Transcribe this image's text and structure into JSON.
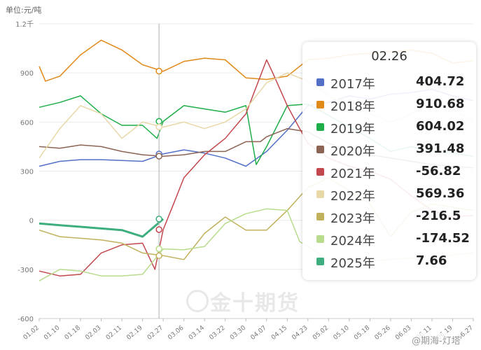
{
  "unit_label": "单位:元/吨",
  "watermark": "金十期货",
  "source_tag": "@期海-灯塔",
  "chart_data": {
    "type": "line",
    "ylim": [
      -600,
      1200
    ],
    "yticks": [
      {
        "value": 1200,
        "label": "1.2千"
      },
      {
        "value": 900,
        "label": "900"
      },
      {
        "value": 600,
        "label": "600"
      },
      {
        "value": 300,
        "label": "300"
      },
      {
        "value": 0,
        "label": "0"
      },
      {
        "value": -300,
        "label": "-300"
      },
      {
        "value": -600,
        "label": "-600"
      }
    ],
    "xticks": [
      "01.02",
      "01.10",
      "01.18",
      "02.03",
      "02.11",
      "02.19",
      "02.27",
      "03.06",
      "03.14",
      "03.22",
      "03.30",
      "04.07",
      "04.15",
      "04.23",
      "05.02",
      "05.10",
      "05.18",
      "05.26",
      "06.03",
      "06.11",
      "06.19",
      "06.27"
    ],
    "cursor_date": "02.26",
    "series": [
      {
        "name": "2017年",
        "color": "#5470c6",
        "tooltip_value": "404.72",
        "points": [
          [
            0,
            330
          ],
          [
            1,
            360
          ],
          [
            2,
            370
          ],
          [
            3,
            370
          ],
          [
            4,
            365
          ],
          [
            5,
            360
          ],
          [
            6,
            405
          ],
          [
            7,
            430
          ],
          [
            8,
            410
          ],
          [
            9,
            380
          ],
          [
            10,
            330
          ],
          [
            11,
            420
          ],
          [
            12,
            550
          ],
          [
            13,
            700
          ],
          [
            14,
            720
          ],
          [
            15,
            760
          ],
          [
            16,
            740
          ],
          [
            17,
            770
          ],
          [
            18,
            780
          ],
          [
            19,
            800
          ],
          [
            20,
            760
          ],
          [
            21,
            730
          ]
        ]
      },
      {
        "name": "2018年",
        "color": "#e08a1a",
        "tooltip_value": "910.68",
        "points": [
          [
            0,
            940
          ],
          [
            0.3,
            850
          ],
          [
            1,
            880
          ],
          [
            2,
            1010
          ],
          [
            3,
            1100
          ],
          [
            4,
            1040
          ],
          [
            5,
            950
          ],
          [
            6,
            910
          ],
          [
            7,
            970
          ],
          [
            8,
            990
          ],
          [
            9,
            980
          ],
          [
            10,
            870
          ],
          [
            11,
            860
          ],
          [
            12,
            880
          ],
          [
            13,
            980
          ],
          [
            14,
            990
          ],
          [
            15,
            1010
          ],
          [
            16,
            1020
          ],
          [
            17,
            1030
          ],
          [
            18,
            1040
          ],
          [
            19,
            1020
          ],
          [
            20,
            960
          ],
          [
            21,
            975
          ]
        ]
      },
      {
        "name": "2019年",
        "color": "#1fae4a",
        "tooltip_value": "604.02",
        "points": [
          [
            0,
            690
          ],
          [
            1,
            720
          ],
          [
            2,
            760
          ],
          [
            3,
            650
          ],
          [
            4,
            580
          ],
          [
            5,
            580
          ],
          [
            5.7,
            500
          ],
          [
            6,
            604
          ],
          [
            7,
            700
          ],
          [
            8,
            680
          ],
          [
            9,
            660
          ],
          [
            10,
            700
          ],
          [
            10.5,
            340
          ],
          [
            11,
            450
          ],
          [
            12,
            700
          ],
          [
            13,
            710
          ],
          [
            14,
            640
          ],
          [
            15,
            570
          ],
          [
            16,
            500
          ],
          [
            17,
            420
          ],
          [
            18,
            450
          ],
          [
            19,
            420
          ],
          [
            20,
            410
          ],
          [
            21,
            390
          ]
        ]
      },
      {
        "name": "2020年",
        "color": "#8c6454",
        "tooltip_value": "391.48",
        "points": [
          [
            0,
            450
          ],
          [
            1,
            440
          ],
          [
            2,
            460
          ],
          [
            3,
            450
          ],
          [
            4,
            420
          ],
          [
            5,
            400
          ],
          [
            6,
            391
          ],
          [
            7,
            400
          ],
          [
            8,
            420
          ],
          [
            9,
            420
          ],
          [
            10,
            480
          ],
          [
            10.7,
            480
          ],
          [
            11,
            510
          ],
          [
            12,
            560
          ],
          [
            13,
            540
          ],
          [
            14,
            470
          ],
          [
            15,
            420
          ],
          [
            16,
            400
          ],
          [
            17,
            380
          ],
          [
            18,
            360
          ],
          [
            19,
            340
          ],
          [
            20,
            330
          ],
          [
            21,
            320
          ]
        ]
      },
      {
        "name": "2021年",
        "color": "#c2484e",
        "tooltip_value": "-56.82",
        "points": [
          [
            0,
            -310
          ],
          [
            1,
            -340
          ],
          [
            2,
            -330
          ],
          [
            3,
            -200
          ],
          [
            4,
            -150
          ],
          [
            5,
            -140
          ],
          [
            5.6,
            -300
          ],
          [
            6,
            -57
          ],
          [
            6.5,
            100
          ],
          [
            7,
            260
          ],
          [
            8,
            400
          ],
          [
            9,
            500
          ],
          [
            10,
            650
          ],
          [
            11,
            980
          ],
          [
            11.3,
            900
          ],
          [
            12,
            700
          ],
          [
            12.6,
            560
          ],
          [
            13,
            470
          ],
          [
            14,
            380
          ],
          [
            15,
            330
          ],
          [
            16,
            300
          ],
          [
            17,
            250
          ],
          [
            18,
            150
          ],
          [
            19,
            60
          ],
          [
            20,
            20
          ],
          [
            21,
            30
          ]
        ]
      },
      {
        "name": "2022年",
        "color": "#e8d8a8",
        "tooltip_value": "569.36",
        "points": [
          [
            0,
            380
          ],
          [
            1,
            560
          ],
          [
            2,
            700
          ],
          [
            3,
            650
          ],
          [
            4,
            500
          ],
          [
            5,
            600
          ],
          [
            6,
            569
          ],
          [
            7,
            600
          ],
          [
            8,
            560
          ],
          [
            9,
            600
          ],
          [
            10,
            680
          ],
          [
            11,
            840
          ],
          [
            12,
            900
          ],
          [
            13,
            850
          ],
          [
            14,
            760
          ],
          [
            15,
            700
          ],
          [
            16,
            650
          ],
          [
            17,
            600
          ],
          [
            18,
            650
          ],
          [
            19,
            700
          ],
          [
            20,
            680
          ],
          [
            21,
            600
          ]
        ]
      },
      {
        "name": "2023年",
        "color": "#c2b15c",
        "tooltip_value": "-216.5",
        "points": [
          [
            0,
            -60
          ],
          [
            1,
            -100
          ],
          [
            2,
            -110
          ],
          [
            3,
            -120
          ],
          [
            4,
            -140
          ],
          [
            5,
            -200
          ],
          [
            6,
            -216
          ],
          [
            7,
            -240
          ],
          [
            8,
            -80
          ],
          [
            9,
            20
          ],
          [
            10,
            -60
          ],
          [
            11,
            -60
          ],
          [
            12,
            60
          ],
          [
            13,
            200
          ],
          [
            14,
            260
          ],
          [
            15,
            180
          ],
          [
            16,
            100
          ],
          [
            17,
            -100
          ],
          [
            18,
            50
          ],
          [
            19,
            100
          ],
          [
            20,
            80
          ],
          [
            21,
            60
          ]
        ]
      },
      {
        "name": "2024年",
        "color": "#b8dc8c",
        "tooltip_value": "-174.52",
        "points": [
          [
            0,
            -370
          ],
          [
            1,
            -300
          ],
          [
            2,
            -310
          ],
          [
            3,
            -340
          ],
          [
            4,
            -340
          ],
          [
            5,
            -330
          ],
          [
            6,
            -175
          ],
          [
            7,
            -180
          ],
          [
            8,
            -160
          ],
          [
            9,
            -20
          ],
          [
            10,
            40
          ],
          [
            11,
            70
          ],
          [
            12,
            60
          ],
          [
            12.6,
            -130
          ],
          [
            13,
            -160
          ],
          [
            14,
            -240
          ],
          [
            15,
            -260
          ],
          [
            16,
            -250
          ],
          [
            17,
            -240
          ],
          [
            18,
            -230
          ],
          [
            19,
            -250
          ],
          [
            20,
            -210
          ],
          [
            21,
            -200
          ]
        ]
      },
      {
        "name": "2025年",
        "color": "#3fae7e",
        "tooltip_value": "7.66",
        "points": [
          [
            0,
            -20
          ],
          [
            1,
            -30
          ],
          [
            2,
            -40
          ],
          [
            3,
            -50
          ],
          [
            4,
            -60
          ],
          [
            5,
            -100
          ],
          [
            6,
            7.66
          ]
        ]
      }
    ]
  }
}
